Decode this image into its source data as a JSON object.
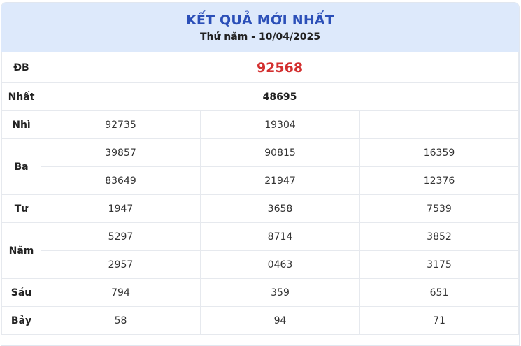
{
  "header": {
    "title": "KẾT QUẢ MỚI NHẤT",
    "date": "Thứ năm - 10/04/2025"
  },
  "prizes": {
    "db": {
      "label": "ĐB",
      "values": [
        "92568"
      ]
    },
    "nhat": {
      "label": "Nhất",
      "values": [
        "48695"
      ]
    },
    "nhi": {
      "label": "Nhì",
      "values": [
        "92735",
        "19304"
      ]
    },
    "ba": {
      "label": "Ba",
      "values": [
        "39857",
        "90815",
        "16359",
        "83649",
        "21947",
        "12376"
      ]
    },
    "tu": {
      "label": "Tư",
      "values": [
        "1947",
        "3658",
        "7539"
      ]
    },
    "nam": {
      "label": "Năm",
      "values": [
        "5297",
        "8714",
        "3852",
        "2957",
        "0463",
        "3175"
      ]
    },
    "sau": {
      "label": "Sáu",
      "values": [
        "794",
        "359",
        "651"
      ]
    },
    "bay": {
      "label": "Bảy",
      "values": [
        "58",
        "94",
        "71"
      ]
    }
  },
  "colors": {
    "header_bg": "#dde9fb",
    "title": "#2b4fb8",
    "special": "#d32f2f",
    "border": "#e6e9ee"
  }
}
